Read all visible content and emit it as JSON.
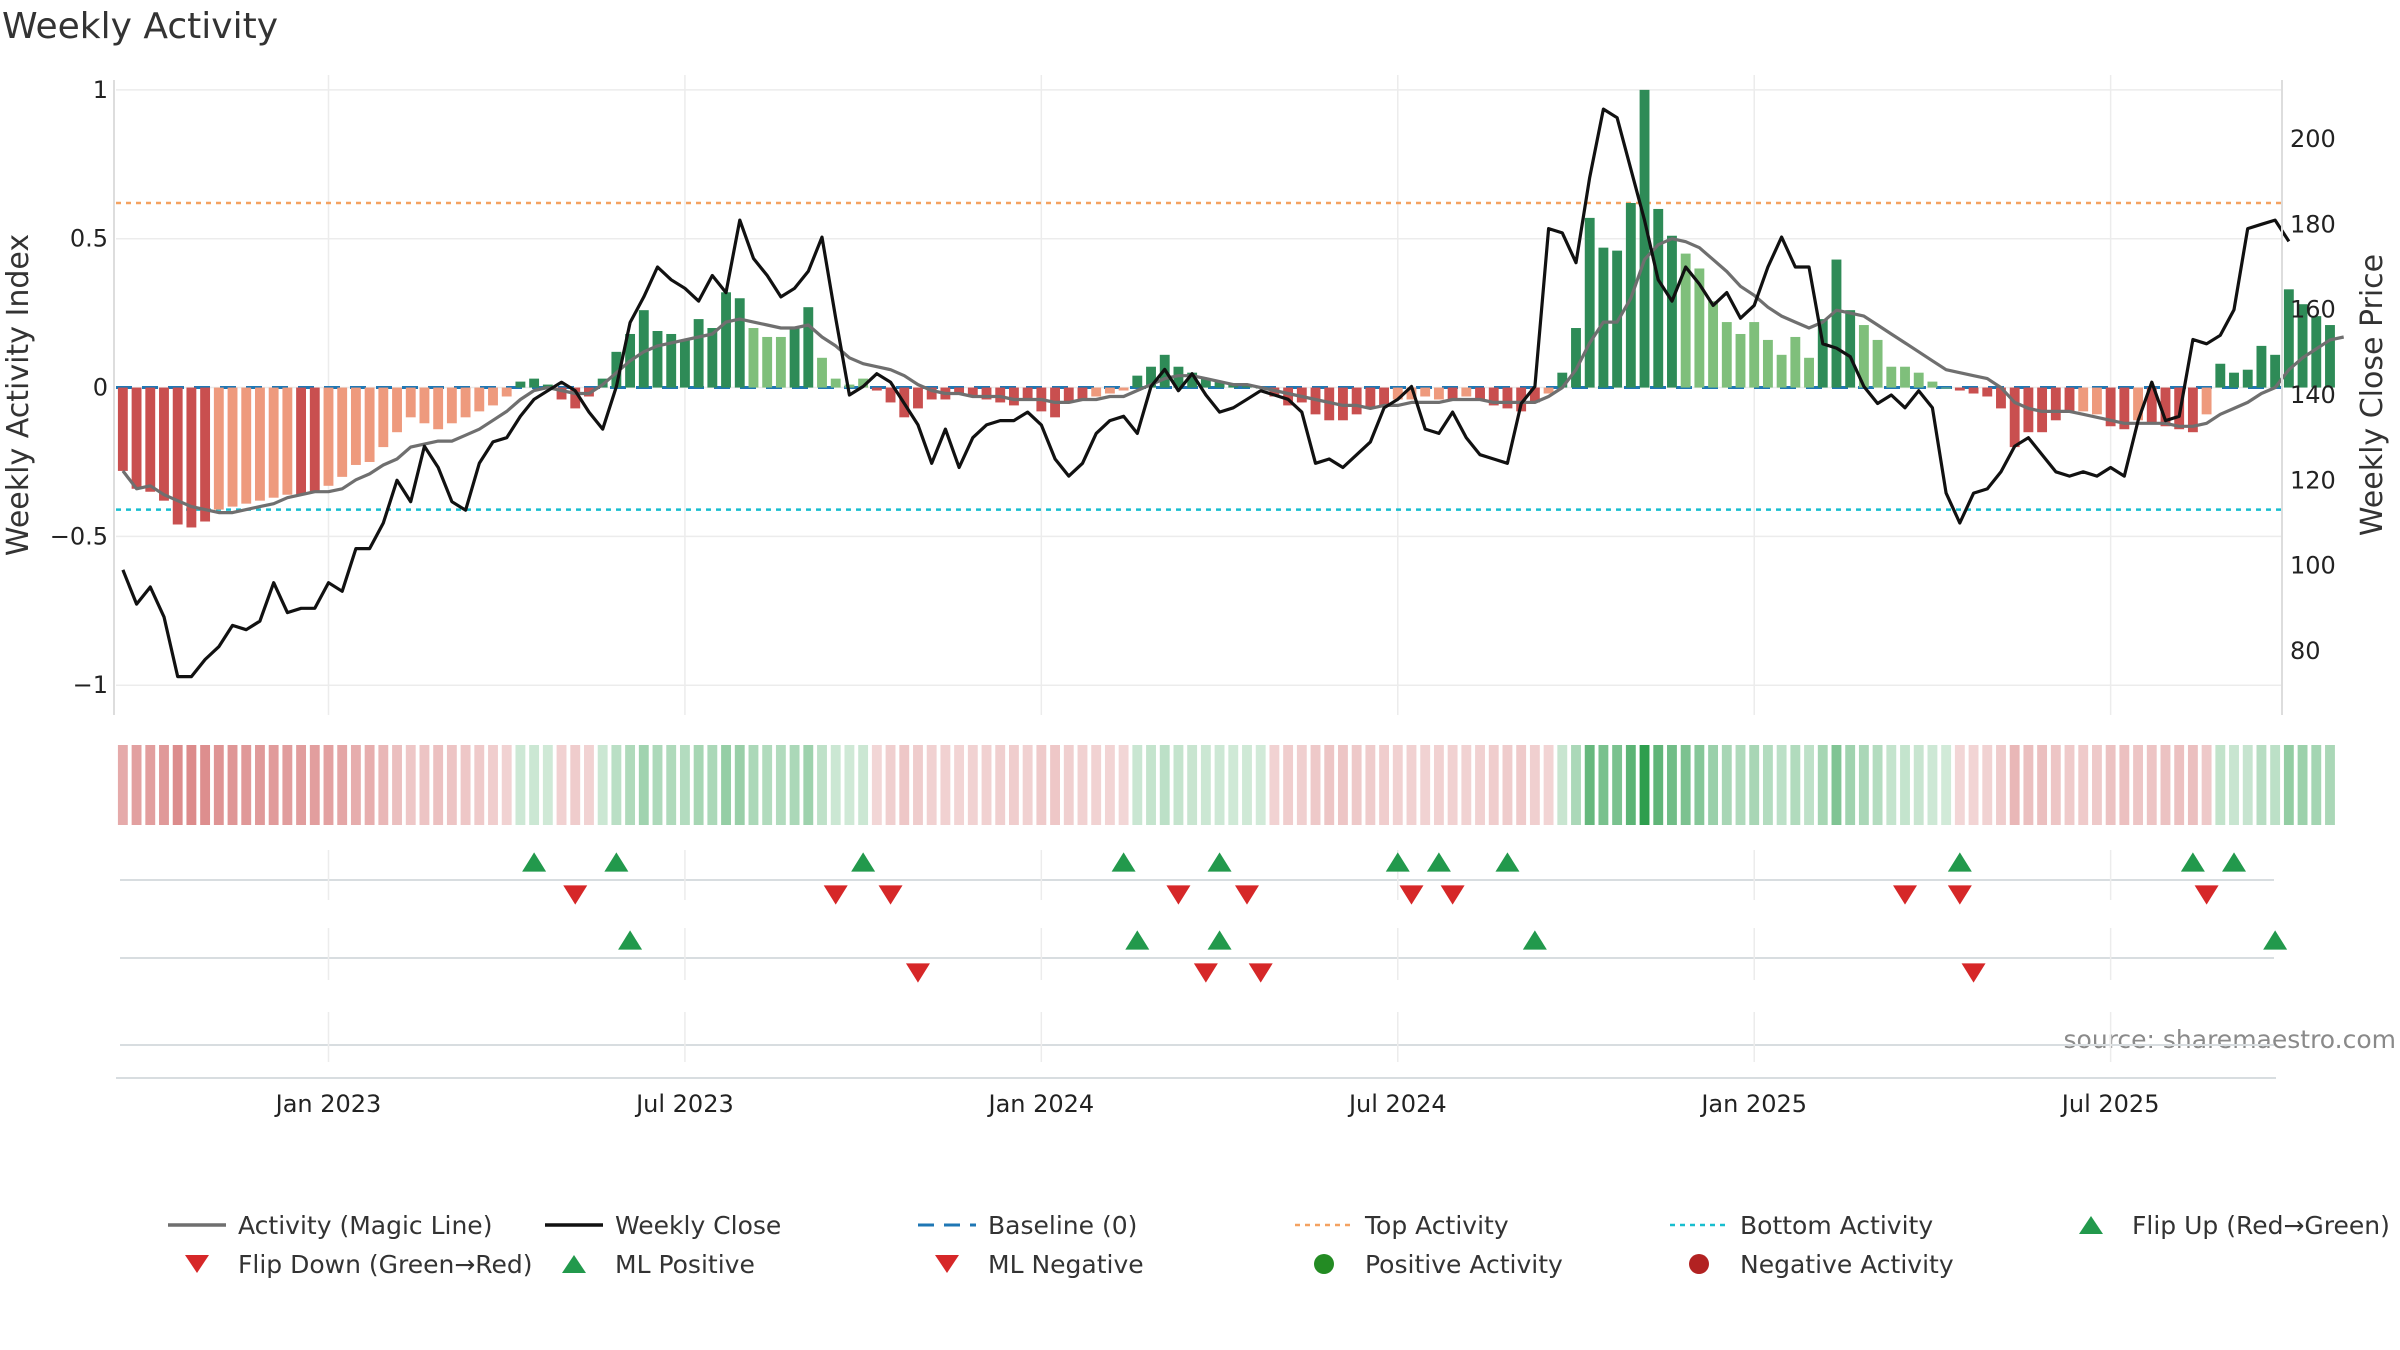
{
  "title": "Weekly Activity",
  "source": "source: sharemaestro.com",
  "colors": {
    "pos_dark": "#2e8b57",
    "pos_light": "#7fbf7b",
    "neg_dark": "#c94f4f",
    "neg_light": "#ee9a7d",
    "magic": "#6f6f6f",
    "close": "#111111",
    "baseline": "#1f77b4",
    "top": "#f4a261",
    "bottom": "#17becf",
    "up": "#22994c",
    "down": "#d62728",
    "pos_dot": "#238b23",
    "neg_dot": "#b22222"
  },
  "chart_data": {
    "type": "bar+line",
    "title": "Weekly Activity",
    "ylabel_left": "Weekly Activity Index",
    "ylabel_right": "Weekly Close Price",
    "ylim_left": [
      -1.1,
      1.05
    ],
    "ylim_right": [
      65,
      215
    ],
    "left_ticks": [
      {
        "v": 1,
        "label": "1"
      },
      {
        "v": 0.5,
        "label": "0.5"
      },
      {
        "v": 0,
        "label": "0"
      },
      {
        "v": -0.5,
        "label": "−0.5"
      },
      {
        "v": -1,
        "label": "−1"
      }
    ],
    "right_ticks": [
      200,
      180,
      160,
      140,
      120,
      100,
      80
    ],
    "top_activity": 0.62,
    "bottom_activity": -0.41,
    "x_ticks": [
      {
        "week": 15,
        "label": "Jan 2023"
      },
      {
        "week": 41,
        "label": "Jul 2023"
      },
      {
        "week": 67,
        "label": "Jan 2024"
      },
      {
        "week": 93,
        "label": "Jul 2024"
      },
      {
        "week": 119,
        "label": "Jan 2025"
      },
      {
        "week": 145,
        "label": "Jul 2025"
      }
    ],
    "weeks": 158,
    "activity": [
      -0.28,
      -0.34,
      -0.35,
      -0.38,
      -0.46,
      -0.47,
      -0.45,
      -0.41,
      -0.4,
      -0.39,
      -0.38,
      -0.37,
      -0.36,
      -0.36,
      -0.35,
      -0.33,
      -0.3,
      -0.26,
      -0.25,
      -0.2,
      -0.15,
      -0.1,
      -0.12,
      -0.14,
      -0.12,
      -0.1,
      -0.08,
      -0.06,
      -0.03,
      0.02,
      0.03,
      0.01,
      -0.04,
      -0.07,
      -0.03,
      0.03,
      0.12,
      0.18,
      0.26,
      0.19,
      0.18,
      0.16,
      0.23,
      0.2,
      0.32,
      0.3,
      0.2,
      0.17,
      0.17,
      0.2,
      0.27,
      0.1,
      0.03,
      0.01,
      0.03,
      -0.01,
      -0.05,
      -0.1,
      -0.07,
      -0.04,
      -0.04,
      -0.02,
      -0.03,
      -0.04,
      -0.05,
      -0.06,
      -0.04,
      -0.08,
      -0.1,
      -0.05,
      -0.04,
      -0.03,
      -0.02,
      -0.01,
      0.04,
      0.07,
      0.11,
      0.07,
      0.05,
      0.03,
      0.02,
      0.01,
      0.01,
      0.0,
      -0.03,
      -0.06,
      -0.05,
      -0.09,
      -0.11,
      -0.11,
      -0.09,
      -0.07,
      -0.06,
      -0.04,
      -0.04,
      -0.03,
      -0.04,
      -0.04,
      -0.03,
      -0.04,
      -0.06,
      -0.07,
      -0.08,
      -0.05,
      -0.02,
      0.05,
      0.2,
      0.57,
      0.47,
      0.46,
      0.62,
      1.0,
      0.6,
      0.51,
      0.45,
      0.4,
      0.29,
      0.22,
      0.18,
      0.22,
      0.16,
      0.11,
      0.17,
      0.1,
      0.23,
      0.43,
      0.26,
      0.21,
      0.16,
      0.07,
      0.07,
      0.05,
      0.02,
      0.0,
      -0.01,
      -0.02,
      -0.03,
      -0.07,
      -0.2,
      -0.15,
      -0.15,
      -0.11,
      -0.08,
      -0.08,
      -0.09,
      -0.13,
      -0.14,
      -0.11,
      -0.12,
      -0.13,
      -0.14,
      -0.15,
      -0.09,
      0.08,
      0.05,
      0.06,
      0.14,
      0.11,
      0.33,
      0.28,
      0.24,
      0.21
    ],
    "magic": [
      -0.28,
      -0.34,
      -0.33,
      -0.36,
      -0.38,
      -0.4,
      -0.41,
      -0.42,
      -0.42,
      -0.41,
      -0.4,
      -0.39,
      -0.37,
      -0.36,
      -0.35,
      -0.35,
      -0.34,
      -0.31,
      -0.29,
      -0.26,
      -0.24,
      -0.2,
      -0.19,
      -0.18,
      -0.18,
      -0.16,
      -0.14,
      -0.11,
      -0.08,
      -0.04,
      -0.01,
      0.0,
      -0.01,
      -0.02,
      -0.02,
      0.01,
      0.05,
      0.09,
      0.12,
      0.14,
      0.15,
      0.16,
      0.17,
      0.18,
      0.22,
      0.23,
      0.22,
      0.21,
      0.2,
      0.2,
      0.21,
      0.17,
      0.14,
      0.1,
      0.08,
      0.07,
      0.06,
      0.04,
      0.01,
      -0.01,
      -0.02,
      -0.02,
      -0.03,
      -0.03,
      -0.03,
      -0.04,
      -0.04,
      -0.04,
      -0.05,
      -0.05,
      -0.04,
      -0.04,
      -0.03,
      -0.03,
      -0.01,
      0.01,
      0.03,
      0.04,
      0.04,
      0.03,
      0.02,
      0.01,
      0.01,
      0.0,
      -0.01,
      -0.02,
      -0.03,
      -0.04,
      -0.05,
      -0.06,
      -0.06,
      -0.07,
      -0.06,
      -0.06,
      -0.05,
      -0.05,
      -0.05,
      -0.04,
      -0.04,
      -0.04,
      -0.05,
      -0.05,
      -0.05,
      -0.05,
      -0.03,
      0.0,
      0.06,
      0.15,
      0.22,
      0.22,
      0.3,
      0.43,
      0.48,
      0.5,
      0.49,
      0.47,
      0.43,
      0.39,
      0.34,
      0.31,
      0.27,
      0.24,
      0.22,
      0.2,
      0.22,
      0.26,
      0.25,
      0.24,
      0.21,
      0.18,
      0.15,
      0.12,
      0.09,
      0.06,
      0.05,
      0.04,
      0.03,
      0.0,
      -0.05,
      -0.07,
      -0.08,
      -0.08,
      -0.08,
      -0.09,
      -0.1,
      -0.11,
      -0.12,
      -0.12,
      -0.12,
      -0.12,
      -0.13,
      -0.13,
      -0.12,
      -0.09,
      -0.07,
      -0.05,
      -0.02,
      0.0,
      0.06,
      0.1,
      0.13,
      0.16,
      0.17
    ],
    "close": [
      99,
      91,
      95,
      88,
      74,
      74,
      78,
      81,
      86,
      85,
      87,
      96,
      89,
      90,
      90,
      96,
      94,
      104,
      104,
      110,
      120,
      115,
      128,
      123,
      115,
      113,
      124,
      129,
      130,
      135,
      139,
      141,
      143,
      141,
      136,
      132,
      142,
      157,
      163,
      170,
      167,
      165,
      162,
      168,
      164,
      181,
      172,
      168,
      163,
      165,
      169,
      177,
      158,
      140,
      142,
      145,
      143,
      138,
      133,
      124,
      132,
      123,
      130,
      133,
      134,
      134,
      136,
      133,
      125,
      121,
      124,
      131,
      134,
      135,
      131,
      142,
      146,
      141,
      145,
      140,
      136,
      137,
      139,
      141,
      140,
      139,
      136,
      124,
      125,
      123,
      126,
      129,
      137,
      139,
      142,
      132,
      131,
      136,
      130,
      126,
      125,
      124,
      138,
      142,
      179,
      178,
      171,
      191,
      207,
      205,
      193,
      181,
      167,
      162,
      170,
      166,
      161,
      164,
      158,
      161,
      170,
      177,
      170,
      170,
      152,
      151,
      149,
      142,
      138,
      140,
      137,
      141,
      137,
      117,
      110,
      117,
      118,
      122,
      128,
      130,
      126,
      122,
      121,
      122,
      121,
      123,
      121,
      134,
      143,
      134,
      135,
      153,
      152,
      154,
      160,
      179,
      180,
      181,
      176
    ],
    "flip_up": [
      30,
      36,
      54,
      73,
      80,
      93,
      96,
      101,
      134,
      151,
      154
    ],
    "flip_down": [
      33,
      52,
      56,
      77,
      82,
      94,
      97,
      130,
      134,
      152
    ],
    "ml_positive": [
      37,
      74,
      80,
      103,
      157
    ],
    "ml_negative": [
      58,
      79,
      83,
      135
    ]
  },
  "legend": [
    {
      "key": "magic",
      "label": "Activity (Magic Line)",
      "marker": "line"
    },
    {
      "key": "close",
      "label": "Weekly Close",
      "marker": "line"
    },
    {
      "key": "baseline",
      "label": "Baseline (0)",
      "marker": "dash"
    },
    {
      "key": "top",
      "label": "Top Activity",
      "marker": "dot"
    },
    {
      "key": "bottom",
      "label": "Bottom Activity",
      "marker": "dot"
    },
    {
      "key": "up",
      "label": "Flip Up (Red→Green)",
      "marker": "tri-up"
    },
    {
      "key": "down",
      "label": "Flip Down (Green→Red)",
      "marker": "tri-down"
    },
    {
      "key": "up",
      "label": "ML Positive",
      "marker": "tri-up"
    },
    {
      "key": "down",
      "label": "ML Negative",
      "marker": "tri-down"
    },
    {
      "key": "pos_dot",
      "label": "Positive Activity",
      "marker": "circle"
    },
    {
      "key": "neg_dot",
      "label": "Negative Activity",
      "marker": "circle"
    }
  ]
}
